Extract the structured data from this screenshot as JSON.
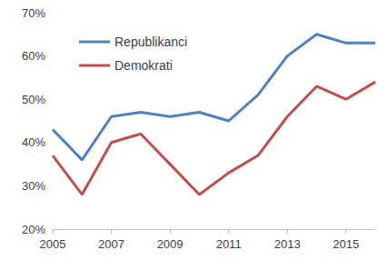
{
  "chart_data": {
    "type": "line",
    "x": [
      2005,
      2006,
      2007,
      2008,
      2009,
      2010,
      2011,
      2012,
      2013,
      2014,
      2015,
      2016
    ],
    "xlim": [
      2005,
      2016
    ],
    "xticks": [
      2005,
      2007,
      2009,
      2011,
      2013,
      2015
    ],
    "ylim": [
      20,
      70
    ],
    "yticks": [
      {
        "value": 20,
        "label": "20%"
      },
      {
        "value": 30,
        "label": "30%"
      },
      {
        "value": 40,
        "label": "40%"
      },
      {
        "value": 50,
        "label": "50%"
      },
      {
        "value": 60,
        "label": "60%"
      },
      {
        "value": 70,
        "label": "70%"
      }
    ],
    "series": [
      {
        "name": "Republikanci",
        "color": "#4f81bd",
        "values": [
          43,
          36,
          46,
          47,
          46,
          47,
          45,
          51,
          60,
          65,
          63,
          63
        ]
      },
      {
        "name": "Demokrati",
        "color": "#c0504d",
        "values": [
          37,
          28,
          40,
          42,
          35,
          28,
          33,
          37,
          46,
          53,
          50,
          54
        ]
      }
    ],
    "grid": false,
    "legend": "top-left",
    "marker": "none",
    "line_style": "solid"
  }
}
